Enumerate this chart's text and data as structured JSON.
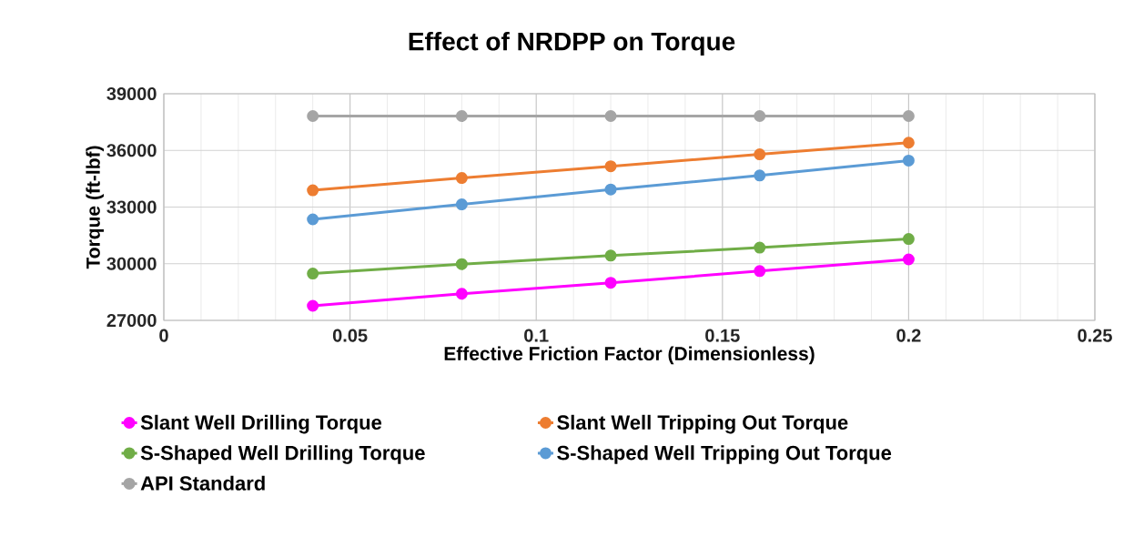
{
  "chart_data": {
    "type": "line",
    "title": "Effect of NRDPP on Torque",
    "xlabel": "Effective Friction Factor (Dimensionless)",
    "ylabel": "Torque (ft-lbf)",
    "x": [
      0.04,
      0.08,
      0.12,
      0.16,
      0.2
    ],
    "series": [
      {
        "name": "Slant Well Drilling Torque",
        "color": "#ff00ff",
        "values": [
          27770,
          28410,
          28990,
          29610,
          30230
        ]
      },
      {
        "name": "Slant Well Tripping Out Torque",
        "color": "#ed7d31",
        "values": [
          33890,
          34540,
          35160,
          35790,
          36410
        ]
      },
      {
        "name": "S-Shaped Well Drilling Torque",
        "color": "#70ad47",
        "values": [
          29480,
          29980,
          30430,
          30850,
          31310
        ]
      },
      {
        "name": "S-Shaped Well Tripping Out Torque",
        "color": "#5b9bd5",
        "values": [
          32350,
          33140,
          33930,
          34670,
          35460
        ]
      },
      {
        "name": "API Standard",
        "color": "#a5a5a5",
        "values": [
          37820,
          37820,
          37820,
          37820,
          37820
        ]
      }
    ],
    "xlim": [
      0,
      0.25
    ],
    "xticks": [
      0,
      {
        "value": 0.01,
        "label": null
      },
      {
        "value": 0.02,
        "label": null
      },
      {
        "value": 0.03,
        "label": null
      },
      {
        "value": 0.04,
        "label": null
      },
      0.05,
      {
        "value": 0.06,
        "label": null
      },
      {
        "value": 0.07,
        "label": null
      },
      {
        "value": 0.08,
        "label": null
      },
      {
        "value": 0.09,
        "label": null
      },
      0.1,
      {
        "value": 0.11,
        "label": null
      },
      {
        "value": 0.12,
        "label": null
      },
      {
        "value": 0.13,
        "label": null
      },
      {
        "value": 0.14,
        "label": null
      },
      0.15,
      {
        "value": 0.16,
        "label": null
      },
      {
        "value": 0.17,
        "label": null
      },
      {
        "value": 0.18,
        "label": null
      },
      {
        "value": 0.19,
        "label": null
      },
      0.2,
      {
        "value": 0.21,
        "label": null
      },
      {
        "value": 0.22,
        "label": null
      },
      {
        "value": 0.23,
        "label": null
      },
      {
        "value": 0.24,
        "label": null
      },
      0.25
    ],
    "ylim": [
      27000,
      39000
    ],
    "yticks": [
      27000,
      30000,
      33000,
      36000,
      39000
    ],
    "grid": true,
    "legend": "bottom",
    "marker": "circle",
    "line_style": "solid"
  }
}
